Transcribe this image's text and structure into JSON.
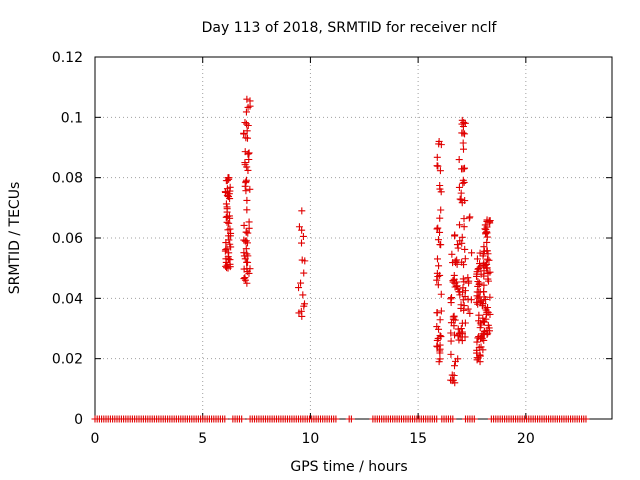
{
  "chart_data": {
    "type": "scatter",
    "title": "Day 113 of 2018, SRMTID for receiver nclf",
    "xlabel": "GPS time / hours",
    "ylabel": "SRMTID / TECUs",
    "xlim": [
      0,
      24
    ],
    "ylim": [
      0,
      0.12
    ],
    "xticks": [
      0,
      5,
      10,
      15,
      20
    ],
    "yticks": [
      0,
      0.02,
      0.04,
      0.06,
      0.08,
      0.1,
      0.12
    ],
    "xtick_labels": [
      "0",
      "5",
      "10",
      "15",
      "20"
    ],
    "ytick_labels": [
      "0",
      "0.02",
      "0.04",
      "0.06",
      "0.08",
      "0.1",
      "0.12"
    ],
    "grid": true,
    "legend": "none",
    "marker": "plus",
    "color": "#e00000",
    "zero_coverage_intervals": [
      [
        0.0,
        6.1
      ],
      [
        6.4,
        6.9
      ],
      [
        7.2,
        11.2
      ],
      [
        11.8,
        11.95
      ],
      [
        12.9,
        15.9
      ],
      [
        16.1,
        16.7
      ],
      [
        17.2,
        17.65
      ],
      [
        18.4,
        22.8
      ]
    ],
    "clusters": [
      {
        "x": [
          6.05,
          6.3
        ],
        "y": [
          0.05,
          0.08
        ],
        "n": 48
      },
      {
        "x": [
          6.9,
          7.2
        ],
        "y": [
          0.045,
          0.106
        ],
        "n": 55
      },
      {
        "x": [
          9.4,
          9.8
        ],
        "y": [
          0.034,
          0.069
        ],
        "n": 14
      },
      {
        "x": [
          15.85,
          16.1
        ],
        "y": [
          0.019,
          0.092
        ],
        "n": 42
      },
      {
        "x": [
          16.5,
          16.9
        ],
        "y": [
          0.012,
          0.061
        ],
        "n": 45
      },
      {
        "x": [
          16.9,
          17.2
        ],
        "y": [
          0.026,
          0.099
        ],
        "n": 55
      },
      {
        "x": [
          17.3,
          17.5
        ],
        "y": [
          0.035,
          0.067
        ],
        "n": 8
      },
      {
        "x": [
          17.7,
          18.05
        ],
        "y": [
          0.019,
          0.055
        ],
        "n": 60
      },
      {
        "x": [
          18.05,
          18.35
        ],
        "y": [
          0.028,
          0.066
        ],
        "n": 55
      }
    ]
  }
}
